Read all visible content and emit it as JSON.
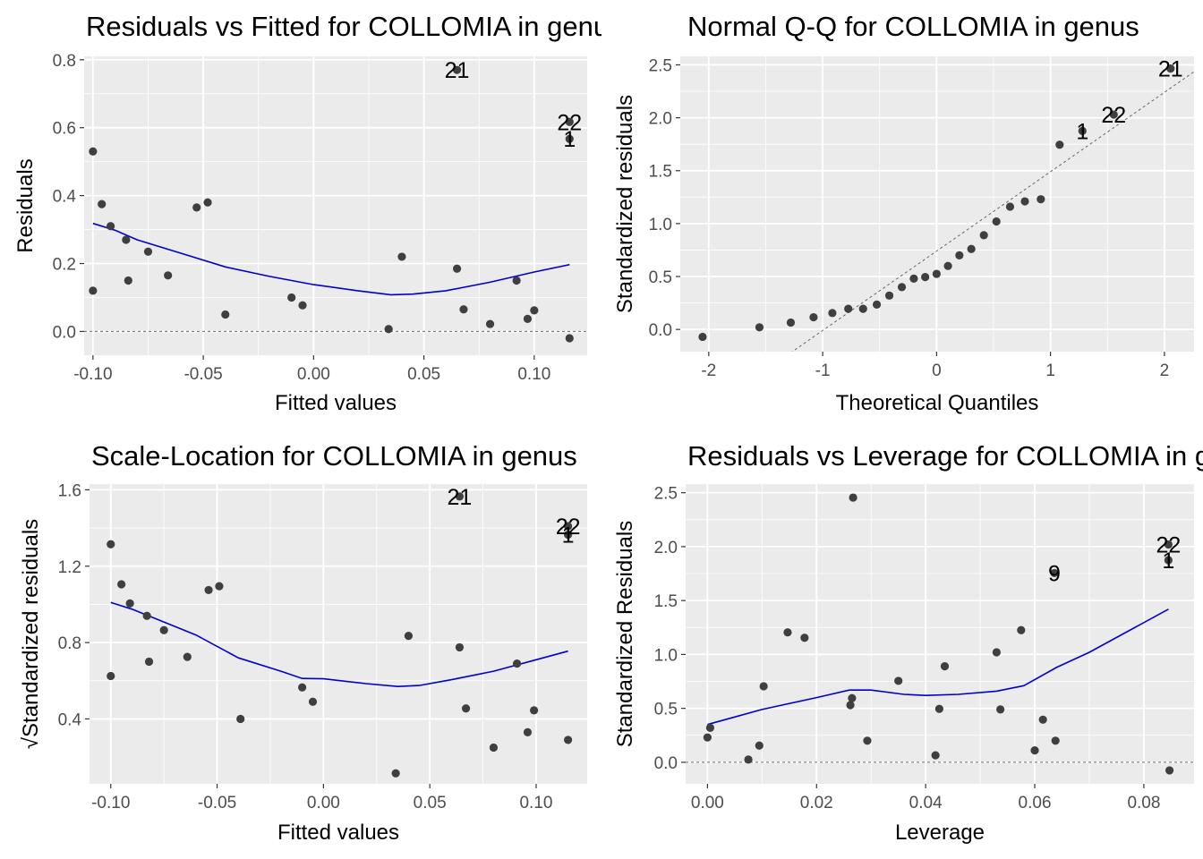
{
  "chart_data": [
    {
      "type": "scatter",
      "title": "Residuals vs Fitted for COLLOMIA in genus",
      "xlabel": "Fitted values",
      "ylabel": "Residuals",
      "xlim": [
        -0.104,
        0.124
      ],
      "ylim": [
        -0.07,
        0.81
      ],
      "xticks": [
        -0.1,
        -0.05,
        0.0,
        0.05,
        0.1
      ],
      "xtick_labels": [
        "-0.10",
        "-0.05",
        "0.00",
        "0.05",
        "0.10"
      ],
      "yticks": [
        0.0,
        0.2,
        0.4,
        0.6,
        0.8
      ],
      "ytick_labels": [
        "0.0",
        "0.2",
        "0.4",
        "0.6",
        "0.8"
      ],
      "grid": true,
      "reference_line": {
        "type": "hline",
        "y": 0,
        "style": "dashed"
      },
      "points": [
        {
          "x": -0.1,
          "y": 0.53
        },
        {
          "x": -0.1,
          "y": 0.12
        },
        {
          "x": -0.096,
          "y": 0.375
        },
        {
          "x": -0.092,
          "y": 0.31
        },
        {
          "x": -0.085,
          "y": 0.27
        },
        {
          "x": -0.084,
          "y": 0.15
        },
        {
          "x": -0.075,
          "y": 0.235
        },
        {
          "x": -0.066,
          "y": 0.165
        },
        {
          "x": -0.053,
          "y": 0.365
        },
        {
          "x": -0.048,
          "y": 0.38
        },
        {
          "x": -0.04,
          "y": 0.05
        },
        {
          "x": -0.01,
          "y": 0.1
        },
        {
          "x": -0.005,
          "y": 0.077
        },
        {
          "x": 0.034,
          "y": 0.007
        },
        {
          "x": 0.04,
          "y": 0.22
        },
        {
          "x": 0.065,
          "y": 0.77
        },
        {
          "x": 0.065,
          "y": 0.185
        },
        {
          "x": 0.068,
          "y": 0.065
        },
        {
          "x": 0.08,
          "y": 0.022
        },
        {
          "x": 0.092,
          "y": 0.15
        },
        {
          "x": 0.097,
          "y": 0.037
        },
        {
          "x": 0.1,
          "y": 0.062
        },
        {
          "x": 0.116,
          "y": 0.617
        },
        {
          "x": 0.116,
          "y": 0.567
        },
        {
          "x": 0.116,
          "y": -0.02
        }
      ],
      "smooth": [
        {
          "x": -0.1,
          "y": 0.318
        },
        {
          "x": -0.09,
          "y": 0.298
        },
        {
          "x": -0.08,
          "y": 0.27
        },
        {
          "x": -0.06,
          "y": 0.23
        },
        {
          "x": -0.04,
          "y": 0.19
        },
        {
          "x": -0.02,
          "y": 0.162
        },
        {
          "x": 0.0,
          "y": 0.138
        },
        {
          "x": 0.02,
          "y": 0.12
        },
        {
          "x": 0.035,
          "y": 0.108
        },
        {
          "x": 0.045,
          "y": 0.11
        },
        {
          "x": 0.06,
          "y": 0.12
        },
        {
          "x": 0.08,
          "y": 0.145
        },
        {
          "x": 0.1,
          "y": 0.175
        },
        {
          "x": 0.116,
          "y": 0.197
        }
      ],
      "point_labels": [
        {
          "text": "21",
          "x": 0.065,
          "y": 0.77
        },
        {
          "text": "22",
          "x": 0.116,
          "y": 0.617
        },
        {
          "text": "1",
          "x": 0.116,
          "y": 0.567
        }
      ]
    },
    {
      "type": "scatter",
      "title": "Normal Q-Q for COLLOMIA in genus",
      "xlabel": "Theoretical Quantiles",
      "ylabel": "Standardized residuals",
      "xlim": [
        -2.25,
        2.26
      ],
      "ylim": [
        -0.21,
        2.58
      ],
      "xticks": [
        -2,
        -1,
        0,
        1,
        2
      ],
      "xtick_labels": [
        "-2",
        "-1",
        "0",
        "1",
        "2"
      ],
      "yticks": [
        0.0,
        0.5,
        1.0,
        1.5,
        2.0,
        2.5
      ],
      "ytick_labels": [
        "0.0",
        "0.5",
        "1.0",
        "1.5",
        "2.0",
        "2.5"
      ],
      "grid": true,
      "reference_line": {
        "type": "abline",
        "intercept": 0.74,
        "slope": 0.75,
        "style": "dashed"
      },
      "points": [
        {
          "x": -2.054,
          "y": -0.07
        },
        {
          "x": -1.555,
          "y": 0.02
        },
        {
          "x": -1.28,
          "y": 0.065
        },
        {
          "x": -1.08,
          "y": 0.115
        },
        {
          "x": -0.915,
          "y": 0.155
        },
        {
          "x": -0.775,
          "y": 0.195
        },
        {
          "x": -0.645,
          "y": 0.195
        },
        {
          "x": -0.525,
          "y": 0.235
        },
        {
          "x": -0.415,
          "y": 0.32
        },
        {
          "x": -0.305,
          "y": 0.4
        },
        {
          "x": -0.2,
          "y": 0.48
        },
        {
          "x": -0.1,
          "y": 0.495
        },
        {
          "x": 0.0,
          "y": 0.525
        },
        {
          "x": 0.1,
          "y": 0.6
        },
        {
          "x": 0.2,
          "y": 0.7
        },
        {
          "x": 0.305,
          "y": 0.76
        },
        {
          "x": 0.415,
          "y": 0.89
        },
        {
          "x": 0.525,
          "y": 1.02
        },
        {
          "x": 0.645,
          "y": 1.16
        },
        {
          "x": 0.775,
          "y": 1.21
        },
        {
          "x": 0.915,
          "y": 1.23
        },
        {
          "x": 1.08,
          "y": 1.745
        },
        {
          "x": 1.28,
          "y": 1.875
        },
        {
          "x": 1.555,
          "y": 2.03
        },
        {
          "x": 2.054,
          "y": 2.465
        }
      ],
      "point_labels": [
        {
          "text": "21",
          "x": 2.054,
          "y": 2.465
        },
        {
          "text": "22",
          "x": 1.555,
          "y": 2.03
        },
        {
          "text": "1",
          "x": 1.28,
          "y": 1.875
        }
      ]
    },
    {
      "type": "scatter",
      "title": "Scale-Location for COLLOMIA in genus",
      "xlabel": "Fitted values",
      "ylabel": "√Standardized residuals",
      "xlim": [
        -0.11,
        0.124
      ],
      "ylim": [
        0.06,
        1.63
      ],
      "xticks": [
        -0.1,
        -0.05,
        0.0,
        0.05,
        0.1
      ],
      "xtick_labels": [
        "-0.10",
        "-0.05",
        "0.00",
        "0.05",
        "0.10"
      ],
      "yticks": [
        0.4,
        0.8,
        1.2,
        1.6
      ],
      "ytick_labels": [
        "0.4",
        "0.8",
        "1.2",
        "1.6"
      ],
      "grid": true,
      "points": [
        {
          "x": -0.1,
          "y": 1.315
        },
        {
          "x": -0.1,
          "y": 0.625
        },
        {
          "x": -0.095,
          "y": 1.105
        },
        {
          "x": -0.091,
          "y": 1.005
        },
        {
          "x": -0.083,
          "y": 0.94
        },
        {
          "x": -0.082,
          "y": 0.7
        },
        {
          "x": -0.075,
          "y": 0.865
        },
        {
          "x": -0.064,
          "y": 0.725
        },
        {
          "x": -0.054,
          "y": 1.075
        },
        {
          "x": -0.049,
          "y": 1.095
        },
        {
          "x": -0.039,
          "y": 0.4
        },
        {
          "x": -0.01,
          "y": 0.565
        },
        {
          "x": -0.005,
          "y": 0.49
        },
        {
          "x": 0.034,
          "y": 0.115
        },
        {
          "x": 0.04,
          "y": 0.835
        },
        {
          "x": 0.064,
          "y": 1.565
        },
        {
          "x": 0.064,
          "y": 0.775
        },
        {
          "x": 0.067,
          "y": 0.455
        },
        {
          "x": 0.08,
          "y": 0.25
        },
        {
          "x": 0.091,
          "y": 0.69
        },
        {
          "x": 0.096,
          "y": 0.33
        },
        {
          "x": 0.099,
          "y": 0.445
        },
        {
          "x": 0.115,
          "y": 1.41
        },
        {
          "x": 0.115,
          "y": 1.365
        },
        {
          "x": 0.115,
          "y": 0.29
        }
      ],
      "smooth": [
        {
          "x": -0.1,
          "y": 1.01
        },
        {
          "x": -0.09,
          "y": 0.975
        },
        {
          "x": -0.08,
          "y": 0.93
        },
        {
          "x": -0.06,
          "y": 0.84
        },
        {
          "x": -0.04,
          "y": 0.72
        },
        {
          "x": -0.02,
          "y": 0.65
        },
        {
          "x": -0.01,
          "y": 0.612
        },
        {
          "x": 0.0,
          "y": 0.61
        },
        {
          "x": 0.02,
          "y": 0.585
        },
        {
          "x": 0.035,
          "y": 0.57
        },
        {
          "x": 0.045,
          "y": 0.575
        },
        {
          "x": 0.06,
          "y": 0.605
        },
        {
          "x": 0.08,
          "y": 0.65
        },
        {
          "x": 0.1,
          "y": 0.71
        },
        {
          "x": 0.115,
          "y": 0.755
        }
      ],
      "point_labels": [
        {
          "text": "21",
          "x": 0.064,
          "y": 1.565
        },
        {
          "text": "22",
          "x": 0.115,
          "y": 1.41
        },
        {
          "text": "1",
          "x": 0.115,
          "y": 1.365
        }
      ]
    },
    {
      "type": "scatter",
      "title": "Residuals vs Leverage for COLLOMIA in genus",
      "xlabel": "Leverage",
      "ylabel": "Standardized Residuals",
      "xlim": [
        -0.004,
        0.0892
      ],
      "ylim": [
        -0.2,
        2.58
      ],
      "xticks": [
        0.0,
        0.02,
        0.04,
        0.06,
        0.08
      ],
      "xtick_labels": [
        "0.00",
        "0.02",
        "0.04",
        "0.06",
        "0.08"
      ],
      "yticks": [
        0.0,
        0.5,
        1.0,
        1.5,
        2.0,
        2.5
      ],
      "ytick_labels": [
        "0.0",
        "0.5",
        "1.0",
        "1.5",
        "2.0",
        "2.5"
      ],
      "grid": true,
      "reference_line": {
        "type": "hline",
        "y": 0,
        "style": "dashed"
      },
      "points": [
        {
          "x": 0.0,
          "y": 0.23
        },
        {
          "x": 0.0005,
          "y": 0.32
        },
        {
          "x": 0.0075,
          "y": 0.025
        },
        {
          "x": 0.0095,
          "y": 0.155
        },
        {
          "x": 0.0103,
          "y": 0.705
        },
        {
          "x": 0.0147,
          "y": 1.205
        },
        {
          "x": 0.0178,
          "y": 1.155
        },
        {
          "x": 0.0262,
          "y": 0.53
        },
        {
          "x": 0.0265,
          "y": 0.595
        },
        {
          "x": 0.0267,
          "y": 2.455
        },
        {
          "x": 0.0293,
          "y": 0.2
        },
        {
          "x": 0.035,
          "y": 0.755
        },
        {
          "x": 0.0418,
          "y": 0.065
        },
        {
          "x": 0.0425,
          "y": 0.495
        },
        {
          "x": 0.0435,
          "y": 0.89
        },
        {
          "x": 0.053,
          "y": 1.02
        },
        {
          "x": 0.0537,
          "y": 0.49
        },
        {
          "x": 0.0575,
          "y": 1.225
        },
        {
          "x": 0.06,
          "y": 0.11
        },
        {
          "x": 0.0615,
          "y": 0.395
        },
        {
          "x": 0.0636,
          "y": 1.755
        },
        {
          "x": 0.0638,
          "y": 0.2
        },
        {
          "x": 0.0845,
          "y": 2.02
        },
        {
          "x": 0.0845,
          "y": 1.875
        },
        {
          "x": 0.0847,
          "y": -0.075
        }
      ],
      "smooth": [
        {
          "x": 0.0,
          "y": 0.35
        },
        {
          "x": 0.005,
          "y": 0.42
        },
        {
          "x": 0.01,
          "y": 0.49
        },
        {
          "x": 0.02,
          "y": 0.6
        },
        {
          "x": 0.026,
          "y": 0.67
        },
        {
          "x": 0.03,
          "y": 0.67
        },
        {
          "x": 0.036,
          "y": 0.63
        },
        {
          "x": 0.04,
          "y": 0.62
        },
        {
          "x": 0.046,
          "y": 0.63
        },
        {
          "x": 0.053,
          "y": 0.66
        },
        {
          "x": 0.058,
          "y": 0.71
        },
        {
          "x": 0.064,
          "y": 0.88
        },
        {
          "x": 0.07,
          "y": 1.02
        },
        {
          "x": 0.0845,
          "y": 1.42
        }
      ],
      "point_labels": [
        {
          "text": "9",
          "x": 0.0636,
          "y": 1.755
        },
        {
          "text": "22",
          "x": 0.0845,
          "y": 2.02
        },
        {
          "text": "1",
          "x": 0.0845,
          "y": 1.875
        }
      ]
    }
  ]
}
